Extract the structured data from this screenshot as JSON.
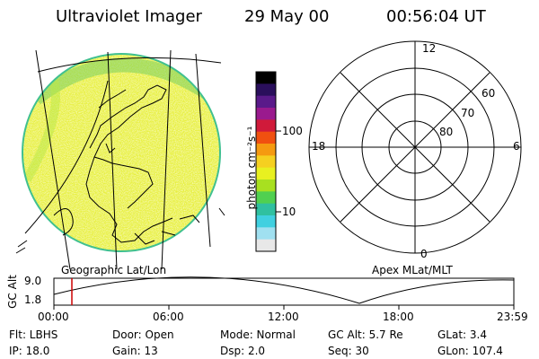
{
  "header": {
    "title": "Ultraviolet Imager",
    "date": "29 May 00",
    "time": "00:56:04 UT"
  },
  "colorbar": {
    "unit_label": "photon cm⁻²s⁻¹",
    "ticks": [
      "100",
      "10"
    ],
    "colors": [
      "#000000",
      "#2a0f5c",
      "#5a1a8a",
      "#9a1a8e",
      "#d01a3a",
      "#f05010",
      "#f59a10",
      "#f5d020",
      "#e8f020",
      "#a8e020",
      "#50d050",
      "#30c0a0",
      "#40d0e0",
      "#a0e0f0",
      "#e8e8e8"
    ]
  },
  "globe": {
    "label": "Geographic Lat/Lon",
    "fill_color": "#e8f040",
    "edge_color": "#40c090"
  },
  "polar_plot": {
    "label": "Apex MLat/MLT",
    "mlt_labels": {
      "top": "12",
      "left": "18",
      "right": "6",
      "bottom": "0"
    },
    "lat_labels": [
      "60",
      "70",
      "80"
    ]
  },
  "altitude_plot": {
    "ylabel": "GC Alt",
    "yticks": [
      "9.0",
      "1.8"
    ],
    "xticks": [
      "00:00",
      "06:00",
      "12:00",
      "18:00",
      "23:59"
    ],
    "marker_color": "#cc0000"
  },
  "info": {
    "flt": "Flt: LBHS",
    "door": "Door: Open",
    "mode": "Mode: Normal",
    "gc_alt": "GC Alt: 5.7 Re",
    "glat": "GLat:   3.4",
    "ip": "IP: 18.0",
    "gain": "Gain: 13",
    "dsp": "Dsp:     2.0",
    "seq": "Seq: 30",
    "glon": "GLon: 107.4"
  }
}
